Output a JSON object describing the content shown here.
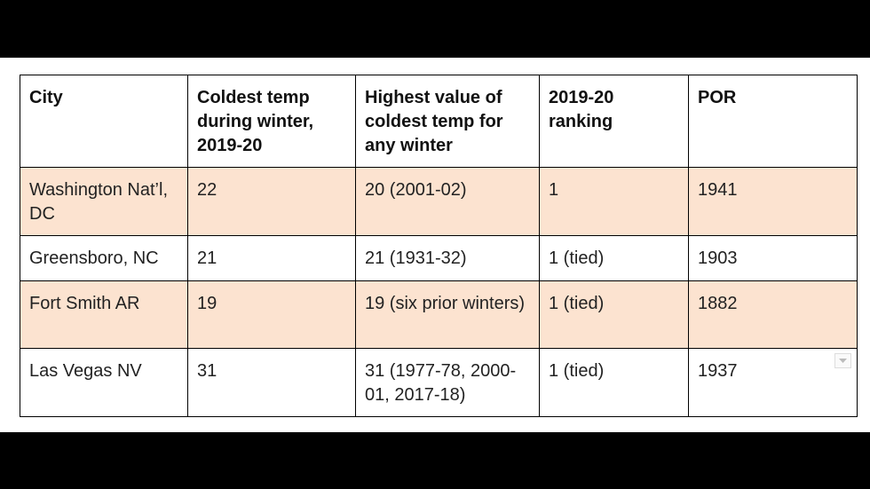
{
  "table": {
    "header": [
      "City",
      "Coldest temp during winter, 2019-20",
      "Highest value of coldest temp for any winter",
      "2019-20 ranking",
      "POR"
    ],
    "rows": [
      [
        "Washington Nat’l, DC",
        "22",
        "20 (2001-02)",
        "1",
        "1941"
      ],
      [
        "Greensboro, NC",
        "21",
        "21 (1931-32)",
        "1 (tied)",
        "1903"
      ],
      [
        "Fort Smith AR",
        "19",
        "19 (six prior winters)",
        "1 (tied)",
        "1882"
      ],
      [
        "Las Vegas NV",
        "31",
        "31 (1977-78, 2000-01, 2017-18)",
        "1 (tied)",
        "1937"
      ]
    ]
  }
}
